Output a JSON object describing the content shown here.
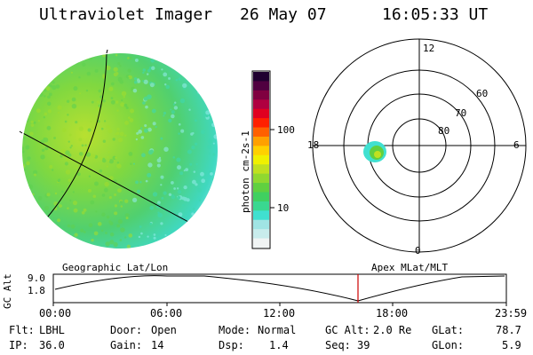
{
  "header": {
    "instrument": "Ultraviolet Imager",
    "date": "26 May 07",
    "time": "16:05:33 UT"
  },
  "colorbar": {
    "unit_label": "photon cm-2s-1",
    "tick_labels": [
      "100",
      "10"
    ],
    "colors": [
      "#f0f4f4",
      "#c8ecec",
      "#a0e4e4",
      "#40e0d0",
      "#3ad890",
      "#40d060",
      "#60d040",
      "#90d830",
      "#c0e020",
      "#f0f000",
      "#ffd000",
      "#ffa000",
      "#ff6000",
      "#ff2000",
      "#e00020",
      "#b00040",
      "#800040",
      "#500040",
      "#200030"
    ]
  },
  "left_panel": {
    "label": "Geographic Lat/Lon"
  },
  "right_panel": {
    "label": "Apex MLat/MLT",
    "mlt_labels": {
      "top": "12",
      "bottom": "0",
      "left": "18",
      "right": "6"
    },
    "lat_labels": [
      "80",
      "70",
      "60"
    ]
  },
  "altitude_plot": {
    "ylabel": "GC Alt",
    "y_ticks": [
      "9.0",
      "1.8"
    ],
    "x_ticks": [
      "00:00",
      "06:00",
      "12:00",
      "18:00",
      "23:59"
    ],
    "marker_color": "#cc0000"
  },
  "info": {
    "filter_label": "Flt:",
    "filter_value": "LBHL",
    "ip_label": "IP:",
    "ip_value": "36.0",
    "door_label": "Door:",
    "door_value": "Open",
    "gain_label": "Gain:",
    "gain_value": "14",
    "mode_label": "Mode:",
    "mode_value": "Normal",
    "dsp_label": "Dsp:",
    "dsp_value": "1.4",
    "gcalt_label": "GC Alt:",
    "gcalt_value": "2.0 Re",
    "seq_label": "Seq:",
    "seq_value": "39",
    "glat_label": "GLat:",
    "glat_value": "78.7",
    "glon_label": "GLon:",
    "glon_value": "5.9"
  }
}
